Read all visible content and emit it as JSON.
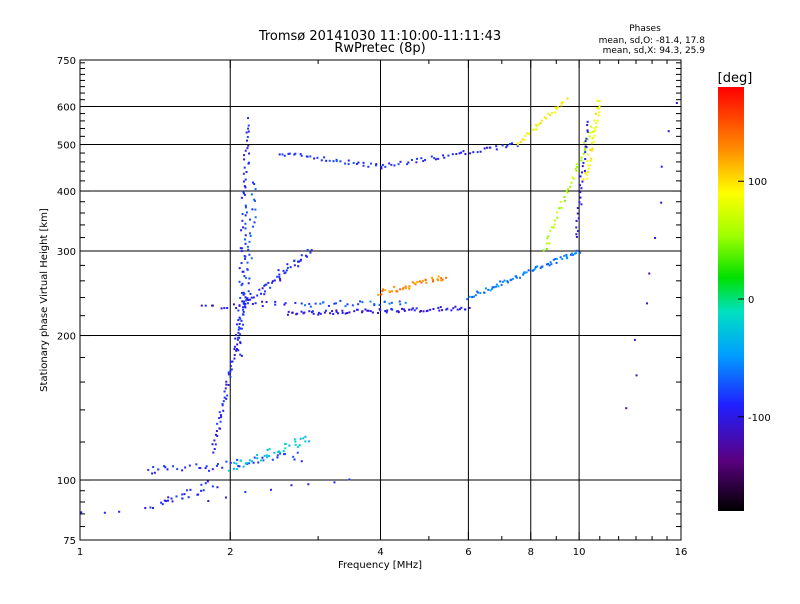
{
  "chart_data": {
    "type": "scatter",
    "title_line1": "Tromsø 20141030 11:10:00-11:11:43",
    "title_line2": "RwPretec (8p)",
    "stats": {
      "header": "Phases",
      "line_o": "mean, sd,O: -81.4, 17.8",
      "line_x": "mean, sd,X:  94.3, 25.9"
    },
    "xlabel": "Frequency [MHz]",
    "ylabel": "Stationary phase Virtual Height [km]",
    "xscale": "log",
    "yscale": "log",
    "xlim": [
      1,
      16
    ],
    "ylim": [
      75,
      750
    ],
    "x_major_ticks": [
      1,
      2,
      4,
      6,
      8,
      10,
      16
    ],
    "x_tick_labels": [
      "1",
      "2",
      "4",
      "6",
      "8",
      "10",
      "16"
    ],
    "x_gridlines": [
      2,
      4,
      6,
      8,
      10
    ],
    "y_major_ticks": [
      75,
      100,
      200,
      300,
      400,
      500,
      600,
      750
    ],
    "y_tick_labels": [
      "75",
      "100",
      "200",
      "300",
      "400",
      "500",
      "600",
      "750"
    ],
    "y_gridlines": [
      100,
      200,
      300,
      400,
      500,
      600
    ],
    "colorbar": {
      "label": "[deg]",
      "range": [
        -180,
        180
      ],
      "ticks": [
        100,
        0,
        -100
      ],
      "tick_labels": [
        "100",
        "0",
        "-100"
      ]
    },
    "series": [
      {
        "x": [
          1.0,
          3.5
        ],
        "y": [
          85,
          100
        ],
        "n": 14,
        "phase": -95,
        "spread": 4
      },
      {
        "x": [
          1.35,
          2.8
        ],
        "y": [
          104,
          112
        ],
        "n": 45,
        "phase": -85,
        "spread": 5
      },
      {
        "x": [
          1.4,
          1.85
        ],
        "y": [
          88,
          98
        ],
        "n": 25,
        "phase": -92,
        "spread": 5
      },
      {
        "x": [
          2.0,
          2.9
        ],
        "y": [
          106,
          122
        ],
        "n": 40,
        "phase": -25,
        "spread": 4
      },
      {
        "x": [
          1.85,
          2.15
        ],
        "y": [
          115,
          240
        ],
        "n": 60,
        "phase": -90,
        "spread": 2
      },
      {
        "x": [
          2.08,
          2.17
        ],
        "y": [
          180,
          560
        ],
        "n": 75,
        "phase": -88,
        "spread": 3
      },
      {
        "x": [
          2.15,
          2.25
        ],
        "y": [
          230,
          420
        ],
        "n": 30,
        "phase": -75,
        "spread": 3
      },
      {
        "x": [
          2.15,
          2.9
        ],
        "y": [
          235,
          300
        ],
        "n": 50,
        "phase": -90,
        "spread": 4
      },
      {
        "x": [
          2.7,
          4.5
        ],
        "y": [
          232,
          235
        ],
        "n": 30,
        "phase": -70,
        "spread": 3
      },
      {
        "x": [
          1.75,
          2.6
        ],
        "y": [
          230,
          233
        ],
        "n": 20,
        "phase": -100,
        "spread": 3
      },
      {
        "x": [
          2.6,
          6.0
        ],
        "y": [
          222,
          228
        ],
        "n": 80,
        "phase": -100,
        "spread": 2
      },
      {
        "x": [
          6.0,
          10.0
        ],
        "y": [
          240,
          300
        ],
        "n": 70,
        "phase": -60,
        "spread": 2
      },
      {
        "x": [
          8.5,
          10.6
        ],
        "y": [
          300,
          540
        ],
        "n": 40,
        "phase": 60,
        "spread": 2
      },
      {
        "x": [
          9.9,
          10.4
        ],
        "y": [
          320,
          560
        ],
        "n": 30,
        "phase": -100,
        "spread": 2
      },
      {
        "x": [
          10.3,
          11.0
        ],
        "y": [
          420,
          620
        ],
        "n": 35,
        "phase": 90,
        "spread": 2
      },
      {
        "x": [
          4.0,
          5.4
        ],
        "y": [
          245,
          265
        ],
        "n": 40,
        "phase": 130,
        "spread": 3
      },
      {
        "x": [
          2.5,
          4.0
        ],
        "y": [
          480,
          450
        ],
        "n": 35,
        "phase": -85,
        "spread": 2
      },
      {
        "x": [
          4.0,
          7.5
        ],
        "y": [
          450,
          500
        ],
        "n": 45,
        "phase": -90,
        "spread": 2
      },
      {
        "x": [
          7.5,
          9.4
        ],
        "y": [
          500,
          620
        ],
        "n": 30,
        "phase": 90,
        "spread": 2
      },
      {
        "x": [
          12.5,
          15.5
        ],
        "y": [
          140,
          620
        ],
        "n": 10,
        "phase": -110,
        "spread": 4
      }
    ]
  }
}
